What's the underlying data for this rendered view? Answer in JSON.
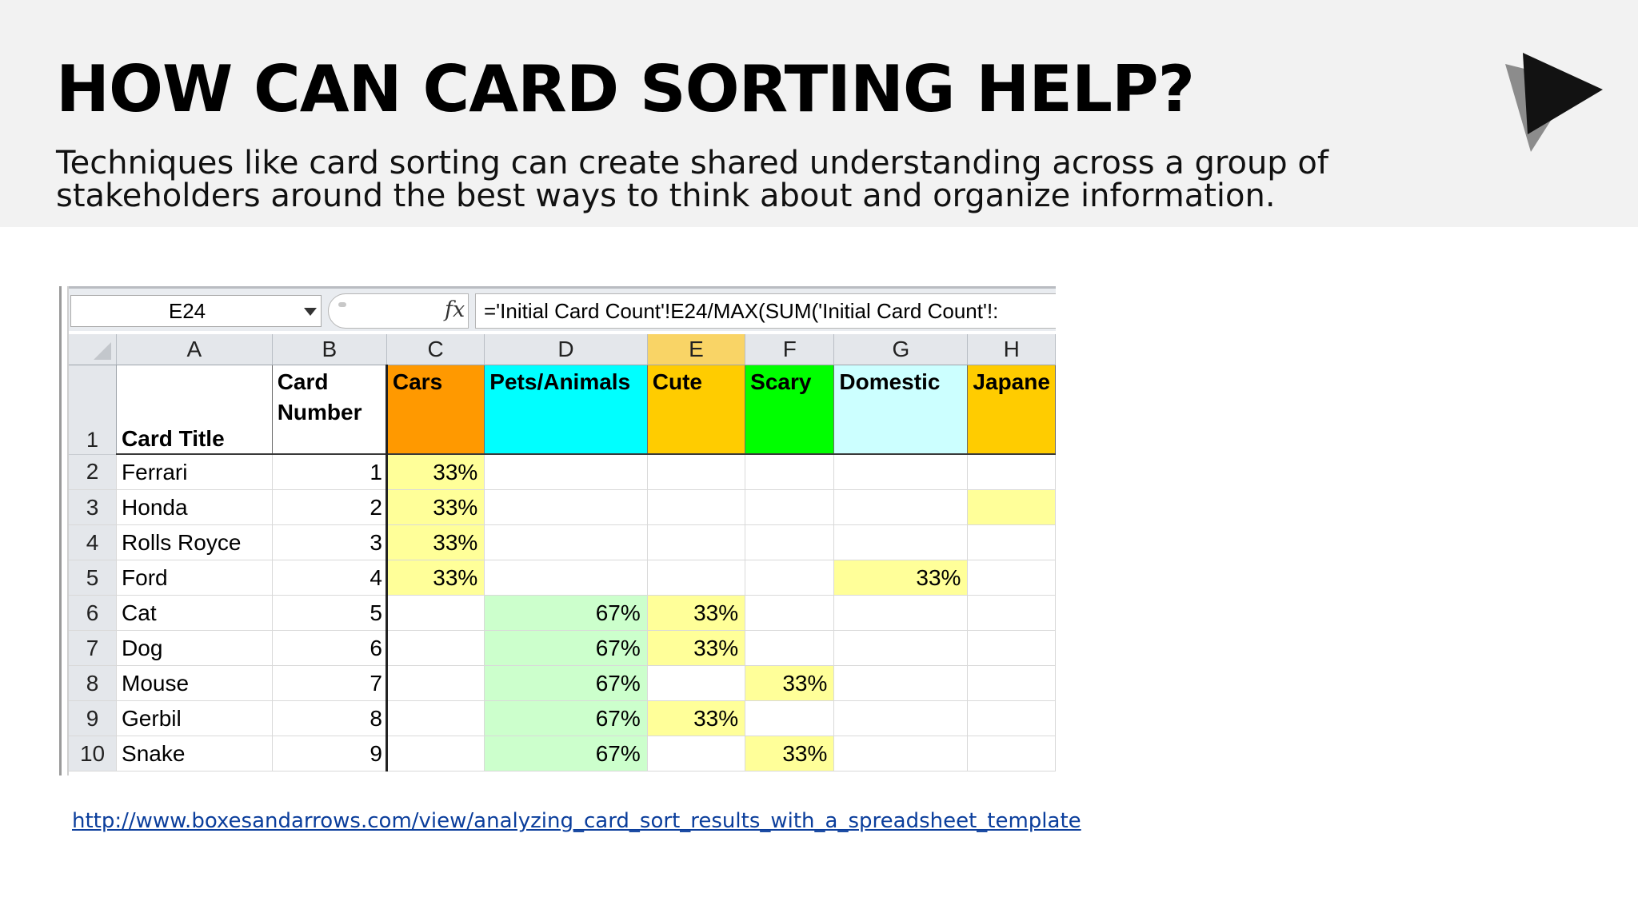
{
  "slide": {
    "title": "HOW CAN CARD SORTING HELP?",
    "subtitle": "Techniques like card sorting can create shared understanding across a group of stakeholders around the best ways to think about and organize information.",
    "logo_icon": "play-triangle-logo-icon",
    "link": "http://www.boxesandarrows.com/view/analyzing_card_sort_results_with_a_spreadsheet_template"
  },
  "spreadsheet": {
    "name_box": "E24",
    "fx_label": "fx",
    "formula": "='Initial Card Count'!E24/MAX(SUM('Initial Card Count'!:",
    "column_letters": [
      "A",
      "B",
      "C",
      "D",
      "E",
      "F",
      "G",
      "H"
    ],
    "selected_column": "E",
    "header_row": {
      "row_number": "1",
      "card_title": "Card Title",
      "card_number": "Card Number",
      "categories": [
        {
          "label": "Cars",
          "color": "#ff9900"
        },
        {
          "label": "Pets/Animals",
          "color": "#00ffff"
        },
        {
          "label": "Cute",
          "color": "#ffcc00"
        },
        {
          "label": "Scary",
          "color": "#00ff00"
        },
        {
          "label": "Domestic",
          "color": "#ccffff"
        },
        {
          "label": "Japane",
          "color": "#ffcc00"
        }
      ]
    },
    "colors": {
      "yellow_cell": "#ffff99",
      "green_cell": "#ccffcc"
    },
    "rows": [
      {
        "row": "2",
        "title": "Ferrari",
        "number": "1",
        "cells": [
          "33%",
          "",
          "",
          "",
          "",
          ""
        ]
      },
      {
        "row": "3",
        "title": "Honda",
        "number": "2",
        "cells": [
          "33%",
          "",
          "",
          "",
          "",
          ""
        ]
      },
      {
        "row": "4",
        "title": "Rolls Royce",
        "number": "3",
        "cells": [
          "33%",
          "",
          "",
          "",
          "",
          ""
        ]
      },
      {
        "row": "5",
        "title": "Ford",
        "number": "4",
        "cells": [
          "33%",
          "",
          "",
          "",
          "33%",
          ""
        ]
      },
      {
        "row": "6",
        "title": "Cat",
        "number": "5",
        "cells": [
          "",
          "67%",
          "33%",
          "",
          "",
          ""
        ]
      },
      {
        "row": "7",
        "title": "Dog",
        "number": "6",
        "cells": [
          "",
          "67%",
          "33%",
          "",
          "",
          ""
        ]
      },
      {
        "row": "8",
        "title": "Mouse",
        "number": "7",
        "cells": [
          "",
          "67%",
          "",
          "33%",
          "",
          ""
        ]
      },
      {
        "row": "9",
        "title": "Gerbil",
        "number": "8",
        "cells": [
          "",
          "67%",
          "33%",
          "",
          "",
          ""
        ]
      },
      {
        "row": "10",
        "title": "Snake",
        "number": "9",
        "cells": [
          "",
          "67%",
          "",
          "33%",
          "",
          ""
        ]
      }
    ]
  }
}
